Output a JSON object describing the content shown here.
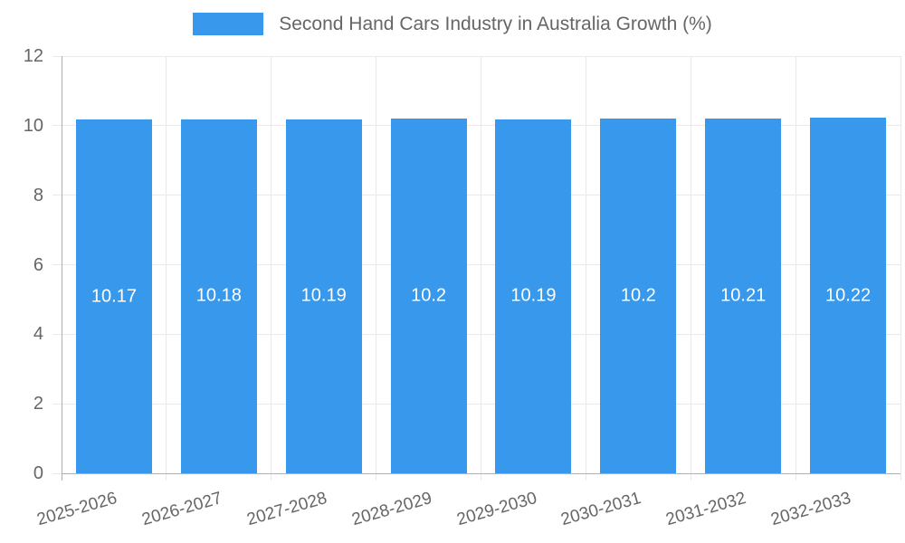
{
  "legend": {
    "label": "Second Hand Cars Industry in Australia Growth (%)"
  },
  "chart_data": {
    "type": "bar",
    "title": "Second Hand Cars Industry in Australia Growth (%)",
    "categories": [
      "2025-2026",
      "2026-2027",
      "2027-2028",
      "2028-2029",
      "2029-2030",
      "2030-2031",
      "2031-2032",
      "2032-2033"
    ],
    "values": [
      10.17,
      10.18,
      10.19,
      10.2,
      10.19,
      10.2,
      10.21,
      10.22
    ],
    "value_labels": [
      "10.17",
      "10.18",
      "10.19",
      "10.2",
      "10.19",
      "10.2",
      "10.21",
      "10.22"
    ],
    "xlabel": "",
    "ylabel": "",
    "ylim": [
      0,
      12
    ],
    "yticks": [
      0,
      2,
      4,
      6,
      8,
      10,
      12
    ],
    "grid": true,
    "legend_position": "top",
    "colors": {
      "bar": "#3899ec",
      "value_label": "#ffffff",
      "axis_text": "#666666",
      "grid_line": "#e9e9e9",
      "axis_line": "#b0b0b0"
    }
  }
}
